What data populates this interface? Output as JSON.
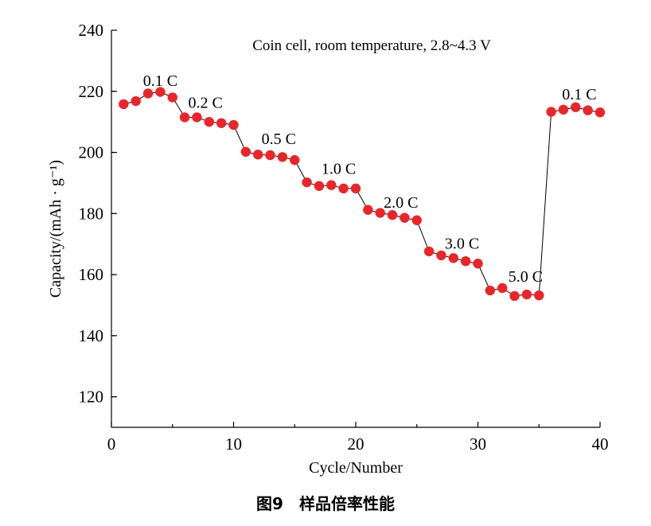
{
  "caption": "图9　样品倍率性能",
  "chart_data": {
    "type": "scatter",
    "title": "Coin cell, room temperature, 2.8~4.3 V",
    "xlabel": "Cycle/Number",
    "ylabel": "Capacity/(mAh · g⁻¹)",
    "xlim": [
      0,
      40
    ],
    "ylim": [
      110,
      240
    ],
    "xticks": [
      0,
      10,
      20,
      30,
      40
    ],
    "yticks": [
      120,
      140,
      160,
      180,
      200,
      220,
      240
    ],
    "grid": false,
    "point_color": "#e8262a",
    "series": [
      {
        "x": [
          1,
          2,
          3,
          4,
          5,
          6,
          7,
          8,
          9,
          10,
          11,
          12,
          13,
          14,
          15,
          16,
          17,
          18,
          19,
          20,
          21,
          22,
          23,
          24,
          25,
          26,
          27,
          28,
          29,
          30,
          31,
          32,
          33,
          34,
          35,
          36,
          37,
          38,
          39,
          40
        ],
        "y": [
          215.8,
          216.8,
          219.3,
          219.8,
          218.0,
          211.5,
          211.5,
          210.0,
          209.6,
          209.0,
          200.2,
          199.3,
          199.1,
          198.5,
          197.5,
          190.2,
          189.0,
          189.3,
          188.2,
          188.2,
          181.2,
          180.2,
          179.5,
          178.6,
          177.8,
          167.6,
          166.3,
          165.4,
          164.4,
          163.6,
          154.8,
          155.6,
          153.0,
          153.5,
          153.2,
          213.3,
          214.0,
          214.8,
          213.8,
          213.1
        ]
      }
    ],
    "annotations": [
      {
        "text": "0.1 C",
        "x": 4.0,
        "y": 221.8
      },
      {
        "text": "0.2 C",
        "x": 7.7,
        "y": 214.6
      },
      {
        "text": "0.5 C",
        "x": 13.7,
        "y": 202.7
      },
      {
        "text": "1.0 C",
        "x": 18.6,
        "y": 193.0
      },
      {
        "text": "2.0 C",
        "x": 23.7,
        "y": 181.9
      },
      {
        "text": "3.0 C",
        "x": 28.7,
        "y": 168.5
      },
      {
        "text": "5.0 C",
        "x": 33.9,
        "y": 157.7
      },
      {
        "text": "0.1 C",
        "x": 38.3,
        "y": 217.3
      }
    ]
  }
}
